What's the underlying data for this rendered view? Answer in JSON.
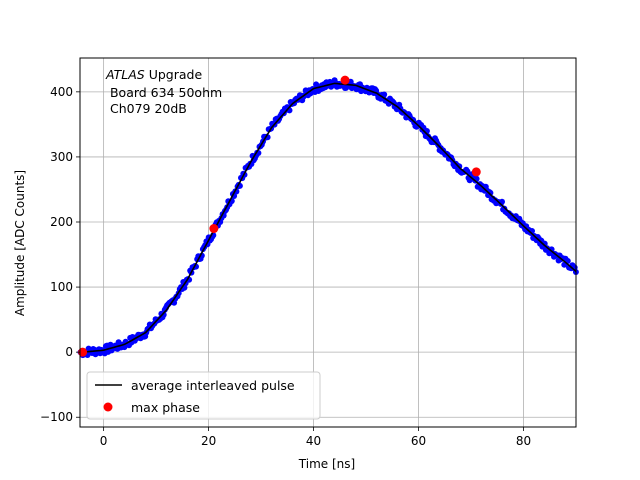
{
  "chart_data": {
    "type": "scatter",
    "xlabel": "Time [ns]",
    "ylabel": "Amplitude [ADC Counts]",
    "xlim": [
      -4.5,
      90
    ],
    "ylim": [
      -115,
      452
    ],
    "xticks": [
      0,
      20,
      40,
      60,
      80
    ],
    "yticks": [
      -100,
      0,
      100,
      200,
      300,
      400
    ],
    "grid": true,
    "annotation": {
      "line1_italic": "ATLAS",
      "line1_rest": " Upgrade",
      "line2": " Board 634 50ohm",
      "line3": " Ch079 20dB"
    },
    "legend_position": "lower-left",
    "series": [
      {
        "name": "average interleaved pulse",
        "kind": "line",
        "color": "#000000",
        "x": [
          -4,
          0,
          4,
          8,
          12,
          16,
          20,
          24,
          28,
          32,
          36,
          40,
          44,
          48,
          52,
          56,
          60,
          64,
          68,
          72,
          76,
          80,
          84,
          88,
          90
        ],
        "y": [
          0,
          3,
          12,
          30,
          65,
          112,
          172,
          232,
          292,
          345,
          382,
          405,
          413,
          410,
          398,
          377,
          348,
          316,
          282,
          255,
          225,
          194,
          164,
          138,
          124
        ]
      },
      {
        "name": "",
        "kind": "samples",
        "color": "#0000ff",
        "note_key": "interleaved samples"
      },
      {
        "name": "max phase",
        "kind": "points",
        "color": "#ff0000",
        "x": [
          -4,
          21,
          46,
          71
        ],
        "y": [
          0,
          190,
          418,
          277
        ]
      }
    ]
  },
  "legend": {
    "line_label": "average interleaved pulse",
    "marker_label": "max phase"
  },
  "colors": {
    "samples": "#0000ff",
    "mean_line": "#000000",
    "max_phase": "#ff0000",
    "grid": "#b0b0b0"
  }
}
